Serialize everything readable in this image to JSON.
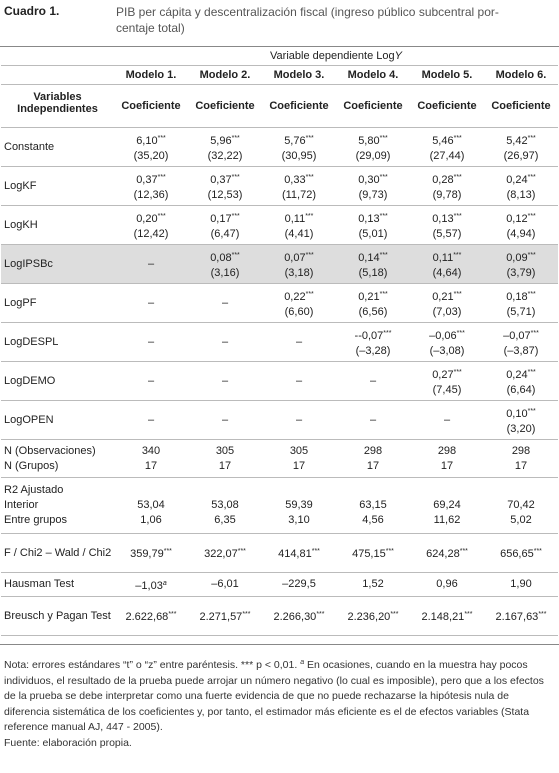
{
  "header": {
    "label": "Cuadro 1.",
    "title_lines": [
      "PIB per cápita y descentralización fiscal (ingreso público subcentral por-",
      "centaje total)"
    ]
  },
  "table": {
    "dependent_text": "Variable dependiente Log",
    "dependent_symbol": "Y",
    "models": [
      "Modelo 1.",
      "Modelo 2.",
      "Modelo 3.",
      "Modelo 4.",
      "Modelo 5.",
      "Modelo 6."
    ],
    "var_header": "Variables Independientes",
    "coef_headers": [
      "Coeficiente",
      "Coeficiente",
      "Coeficiente",
      "Coeficiente",
      "Coeficiente",
      "Coeficiente"
    ],
    "rows": [
      {
        "name": "Constante",
        "cells": [
          {
            "value": "6,10",
            "sup": "***",
            "se": "(35,20)"
          },
          {
            "value": "5,96",
            "sup": "***",
            "se": "(32,22)"
          },
          {
            "value": "5,76",
            "sup": "***",
            "se": "(30,95)"
          },
          {
            "value": "5,80",
            "sup": "***",
            "se": "(29,09)"
          },
          {
            "value": "5,46",
            "sup": "***",
            "se": "(27,44)"
          },
          {
            "value": "5,42",
            "sup": "***",
            "se": "(26,97)"
          }
        ]
      },
      {
        "name": "LogKF",
        "cells": [
          {
            "value": "0,37",
            "sup": "***",
            "se": "(12,36)"
          },
          {
            "value": "0,37",
            "sup": "***",
            "se": "(12,53)"
          },
          {
            "value": "0,33",
            "sup": "***",
            "se": "(11,72)"
          },
          {
            "value": "0,30",
            "sup": "***",
            "se": "(9,73)"
          },
          {
            "value": "0,28",
            "sup": "***",
            "se": "(9,78)"
          },
          {
            "value": "0,24",
            "sup": "***",
            "se": "(8,13)"
          }
        ]
      },
      {
        "name": "LogKH",
        "cells": [
          {
            "value": "0,20",
            "sup": "***",
            "se": "(12,42)"
          },
          {
            "value": "0,17",
            "sup": "***",
            "se": "(6,47)"
          },
          {
            "value": "0,11",
            "sup": "***",
            "se": "(4,41)"
          },
          {
            "value": "0,13",
            "sup": "***",
            "se": "(5,01)"
          },
          {
            "value": "0,13",
            "sup": "***",
            "se": "(5,57)"
          },
          {
            "value": "0,12",
            "sup": "***",
            "se": "(4,94)"
          }
        ]
      },
      {
        "name": "LogIPSBc",
        "shade": true,
        "cells": [
          {
            "value": "–"
          },
          {
            "value": "0,08",
            "sup": "***",
            "se": "(3,16)"
          },
          {
            "value": "0,07",
            "sup": "***",
            "se": "(3,18)"
          },
          {
            "value": "0,14",
            "sup": "***",
            "se": "(5,18)"
          },
          {
            "value": "0,11",
            "sup": "***",
            "se": "(4,64)"
          },
          {
            "value": "0,09",
            "sup": "***",
            "se": "(3,79)"
          }
        ]
      },
      {
        "name": "LogPF",
        "cells": [
          {
            "value": "–"
          },
          {
            "value": "–"
          },
          {
            "value": "0,22",
            "sup": "***",
            "se": "(6,60)"
          },
          {
            "value": "0,21",
            "sup": "***",
            "se": "(6,56)"
          },
          {
            "value": "0,21",
            "sup": "***",
            "se": "(7,03)"
          },
          {
            "value": "0,18",
            "sup": "***",
            "se": "(5,71)"
          }
        ]
      },
      {
        "name": "LogDESPL",
        "cells": [
          {
            "value": "–"
          },
          {
            "value": "–"
          },
          {
            "value": "–"
          },
          {
            "value": "--0,07",
            "sup": "***",
            "se": "(–3,28)"
          },
          {
            "value": "–0,06",
            "sup": "***",
            "se": "(–3,08)"
          },
          {
            "value": "–0,07",
            "sup": "***",
            "se": "(–3,87)"
          }
        ]
      },
      {
        "name": "LogDEMO",
        "cells": [
          {
            "value": "–"
          },
          {
            "value": "–"
          },
          {
            "value": "–"
          },
          {
            "value": "–"
          },
          {
            "value": "0,27",
            "sup": "***",
            "se": "(7,45)"
          },
          {
            "value": "0,24",
            "sup": "***",
            "se": "(6,64)"
          }
        ]
      },
      {
        "name": "LogOPEN",
        "cells": [
          {
            "value": "–"
          },
          {
            "value": "–"
          },
          {
            "value": "–"
          },
          {
            "value": "–"
          },
          {
            "value": "–"
          },
          {
            "value": "0,10",
            "sup": "***",
            "se": "(3,20)"
          }
        ]
      },
      {
        "subrows": [
          {
            "name": "N (Observaciones)",
            "cells": [
              {
                "value": "340"
              },
              {
                "value": "305"
              },
              {
                "value": "305"
              },
              {
                "value": "298"
              },
              {
                "value": "298"
              },
              {
                "value": "298"
              }
            ]
          },
          {
            "name": "N (Grupos)",
            "cells": [
              {
                "value": "17"
              },
              {
                "value": "17"
              },
              {
                "value": "17"
              },
              {
                "value": "17"
              },
              {
                "value": "17"
              },
              {
                "value": "17"
              }
            ]
          }
        ]
      },
      {
        "name": "R2 Ajustado",
        "subrows": [
          {
            "name": "Interior",
            "cells": [
              {
                "value": "53,04"
              },
              {
                "value": "53,08"
              },
              {
                "value": "59,39"
              },
              {
                "value": "63,15"
              },
              {
                "value": "69,24"
              },
              {
                "value": "70,42"
              }
            ]
          },
          {
            "name": "Entre grupos",
            "cells": [
              {
                "value": "1,06"
              },
              {
                "value": "6,35"
              },
              {
                "value": "3,10"
              },
              {
                "value": "4,56"
              },
              {
                "value": "11,62"
              },
              {
                "value": "5,02"
              }
            ]
          }
        ]
      },
      {
        "name": "F / Chi2 – Wald / Chi2",
        "cells": [
          {
            "value": "359,79",
            "sup": "***"
          },
          {
            "value": "322,07",
            "sup": "***"
          },
          {
            "value": "414,81",
            "sup": "***"
          },
          {
            "value": "475,15",
            "sup": "***"
          },
          {
            "value": "624,28",
            "sup": "***"
          },
          {
            "value": "656,65",
            "sup": "***"
          }
        ]
      },
      {
        "name": "Hausman Test",
        "cells": [
          {
            "value": "–1,03",
            "sup": "a"
          },
          {
            "value": "–6,01"
          },
          {
            "value": "–229,5"
          },
          {
            "value": "1,52"
          },
          {
            "value": "0,96"
          },
          {
            "value": "1,90"
          }
        ]
      },
      {
        "name": "Breusch y Pagan Test",
        "cells": [
          {
            "value": "2.622,68",
            "sup": "***"
          },
          {
            "value": "2.271,57",
            "sup": "***"
          },
          {
            "value": "2.266,30",
            "sup": "***"
          },
          {
            "value": "2.236,20",
            "sup": "***"
          },
          {
            "value": "2.148,21",
            "sup": "***"
          },
          {
            "value": "2.167,63",
            "sup": "***"
          }
        ]
      }
    ]
  },
  "notes": {
    "part1": "Nota: errores estándares “t” o “z” entre paréntesis. *** p < 0,01. ",
    "sup": "a",
    "part2": " En ocasiones, cuando en la muestra hay pocos individuos, el resultado de la prueba puede arrojar un número negativo (lo cual es imposible), pero que a los efectos de la prueba se debe interpretar como una fuerte evidencia de que no puede rechazarse la hipótesis nula de diferencia sistemática de los coeficientes y, por tanto, el estimador más eficiente es el de efectos variables (Stata reference manual AJ, 447 - 2005).",
    "source": "Fuente: elaboración propia."
  }
}
